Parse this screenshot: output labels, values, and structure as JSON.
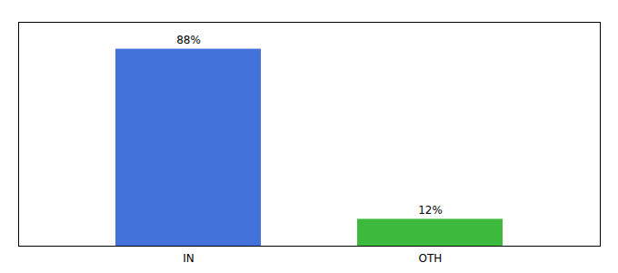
{
  "chart_data": {
    "type": "bar",
    "categories": [
      "IN",
      "OTH"
    ],
    "values": [
      88,
      12
    ],
    "value_labels": [
      "88%",
      "12%"
    ],
    "colors": [
      "#4472db",
      "#3dba3d"
    ],
    "ylim": [
      0,
      100
    ],
    "data_labels": true,
    "tick_labels": "x",
    "grid": false
  }
}
